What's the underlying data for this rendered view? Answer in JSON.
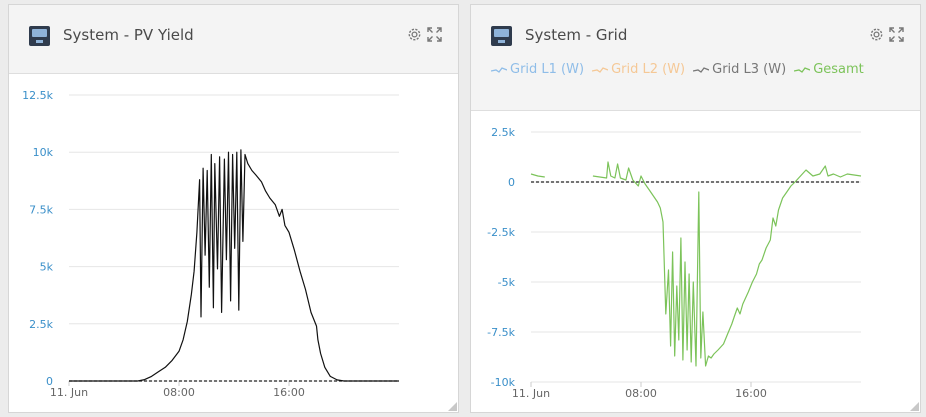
{
  "panels": [
    {
      "title": "System - PV Yield",
      "legend": [],
      "chart_data": {
        "type": "line",
        "xlabel": "",
        "ylabel": "",
        "x_tick_labels": [
          "11. Jun",
          "08:00",
          "16:00"
        ],
        "x_tick_hours": [
          0,
          8,
          16
        ],
        "xlim_hours": [
          0,
          24
        ],
        "y_tick_labels": [
          "0",
          "2.5k",
          "5k",
          "7.5k",
          "10k",
          "12.5k"
        ],
        "y_ticks": [
          0,
          2500,
          5000,
          7500,
          10000,
          12500
        ],
        "ylim": [
          0,
          12500
        ],
        "zero_line": true,
        "grid": "horizontal",
        "series": [
          {
            "color": "#111111",
            "points": [
              [
                0,
                0
              ],
              [
                1,
                0
              ],
              [
                2,
                0
              ],
              [
                3,
                0
              ],
              [
                4,
                0
              ],
              [
                5,
                0
              ],
              [
                5.5,
                60
              ],
              [
                6,
                200
              ],
              [
                6.5,
                400
              ],
              [
                7,
                600
              ],
              [
                7.5,
                900
              ],
              [
                8,
                1300
              ],
              [
                8.3,
                1800
              ],
              [
                8.6,
                2600
              ],
              [
                8.9,
                3800
              ],
              [
                9.1,
                4800
              ],
              [
                9.3,
                6500
              ],
              [
                9.5,
                8800
              ],
              [
                9.6,
                2800
              ],
              [
                9.75,
                9300
              ],
              [
                9.9,
                5500
              ],
              [
                10.05,
                9200
              ],
              [
                10.2,
                4100
              ],
              [
                10.35,
                9900
              ],
              [
                10.5,
                3200
              ],
              [
                10.6,
                9500
              ],
              [
                10.8,
                4900
              ],
              [
                10.95,
                9800
              ],
              [
                11.1,
                3000
              ],
              [
                11.3,
                9700
              ],
              [
                11.45,
                5300
              ],
              [
                11.6,
                10000
              ],
              [
                11.75,
                3500
              ],
              [
                11.9,
                9900
              ],
              [
                12.05,
                5800
              ],
              [
                12.2,
                10000
              ],
              [
                12.35,
                3100
              ],
              [
                12.5,
                10100
              ],
              [
                12.65,
                6100
              ],
              [
                12.8,
                9900
              ],
              [
                13,
                9500
              ],
              [
                13.3,
                9200
              ],
              [
                13.6,
                9000
              ],
              [
                14,
                8700
              ],
              [
                14.3,
                8300
              ],
              [
                14.6,
                8000
              ],
              [
                15,
                7700
              ],
              [
                15.3,
                7200
              ],
              [
                15.5,
                7500
              ],
              [
                15.7,
                6800
              ],
              [
                16,
                6500
              ],
              [
                16.4,
                5700
              ],
              [
                16.8,
                4800
              ],
              [
                17.2,
                4000
              ],
              [
                17.6,
                3000
              ],
              [
                18,
                2400
              ],
              [
                18.1,
                1800
              ],
              [
                18.3,
                1200
              ],
              [
                18.6,
                600
              ],
              [
                19,
                200
              ],
              [
                19.5,
                50
              ],
              [
                20,
                0
              ],
              [
                21,
                0
              ],
              [
                24,
                0
              ]
            ]
          }
        ]
      }
    },
    {
      "title": "System - Grid",
      "legend": [
        {
          "label": "Grid L1 (W)",
          "color": "#8fbde8"
        },
        {
          "label": "Grid L2 (W)",
          "color": "#f5c896"
        },
        {
          "label": "Grid L3 (W)",
          "color": "#777777"
        },
        {
          "label": "Gesamt",
          "color": "#7cc35a"
        }
      ],
      "chart_data": {
        "type": "line",
        "xlabel": "",
        "ylabel": "",
        "x_tick_labels": [
          "11. Jun",
          "08:00",
          "16:00"
        ],
        "x_tick_hours": [
          0,
          8,
          16
        ],
        "xlim_hours": [
          0,
          24
        ],
        "y_tick_labels": [
          "2.5k",
          "0",
          "-2.5k",
          "-5k",
          "-7.5k",
          "-10k"
        ],
        "y_ticks": [
          2500,
          0,
          -2500,
          -5000,
          -7500,
          -10000
        ],
        "ylim": [
          -10000,
          2500
        ],
        "zero_line": true,
        "grid": "horizontal",
        "series": [
          {
            "color": "#7cc35a",
            "segments": [
              [
                [
                  0,
                  400
                ],
                [
                  0.5,
                  300
                ],
                [
                  1,
                  250
                ]
              ],
              [
                [
                  4.5,
                  300
                ],
                [
                  5,
                  250
                ],
                [
                  5.5,
                  200
                ],
                [
                  5.6,
                  1000
                ],
                [
                  5.8,
                  300
                ],
                [
                  6.1,
                  200
                ],
                [
                  6.3,
                  900
                ],
                [
                  6.5,
                  200
                ],
                [
                  6.9,
                  100
                ],
                [
                  7.1,
                  700
                ],
                [
                  7.4,
                  100
                ],
                [
                  7.8,
                  -200
                ],
                [
                  8,
                  300
                ],
                [
                  8.3,
                  -100
                ],
                [
                  8.6,
                  -400
                ],
                [
                  8.9,
                  -700
                ],
                [
                  9.2,
                  -1000
                ],
                [
                  9.4,
                  -1300
                ],
                [
                  9.6,
                  -2000
                ],
                [
                  9.8,
                  -6600
                ],
                [
                  10,
                  -4400
                ],
                [
                  10.15,
                  -8200
                ],
                [
                  10.3,
                  -3500
                ],
                [
                  10.45,
                  -8700
                ],
                [
                  10.6,
                  -5200
                ],
                [
                  10.75,
                  -7900
                ],
                [
                  10.9,
                  -2800
                ],
                [
                  11.05,
                  -8900
                ],
                [
                  11.2,
                  -4000
                ],
                [
                  11.35,
                  -8400
                ],
                [
                  11.5,
                  -4600
                ],
                [
                  11.65,
                  -9000
                ],
                [
                  11.8,
                  -5000
                ],
                [
                  12,
                  -9200
                ],
                [
                  12.2,
                  -500
                ],
                [
                  12.35,
                  -8800
                ],
                [
                  12.5,
                  -6500
                ],
                [
                  12.7,
                  -9200
                ],
                [
                  12.9,
                  -8700
                ],
                [
                  13.1,
                  -8800
                ],
                [
                  13.3,
                  -8600
                ],
                [
                  13.6,
                  -8400
                ],
                [
                  14,
                  -8100
                ],
                [
                  14.3,
                  -7600
                ],
                [
                  14.6,
                  -7100
                ],
                [
                  14.8,
                  -6700
                ],
                [
                  15,
                  -6300
                ],
                [
                  15.2,
                  -6600
                ],
                [
                  15.4,
                  -6100
                ],
                [
                  15.8,
                  -5500
                ],
                [
                  16.1,
                  -5000
                ],
                [
                  16.4,
                  -4600
                ],
                [
                  16.6,
                  -4100
                ],
                [
                  16.8,
                  -3900
                ],
                [
                  17.1,
                  -3300
                ],
                [
                  17.4,
                  -2900
                ],
                [
                  17.6,
                  -1800
                ],
                [
                  17.8,
                  -2200
                ],
                [
                  18,
                  -1400
                ],
                [
                  18.3,
                  -800
                ],
                [
                  18.6,
                  -500
                ],
                [
                  18.9,
                  -200
                ],
                [
                  19.2,
                  0
                ],
                [
                  19.6,
                  300
                ],
                [
                  20,
                  600
                ],
                [
                  20.5,
                  300
                ],
                [
                  21,
                  400
                ],
                [
                  21.4,
                  800
                ],
                [
                  21.6,
                  300
                ],
                [
                  22,
                  400
                ],
                [
                  22.5,
                  250
                ],
                [
                  23,
                  400
                ],
                [
                  24,
                  300
                ]
              ]
            ]
          }
        ]
      }
    }
  ]
}
